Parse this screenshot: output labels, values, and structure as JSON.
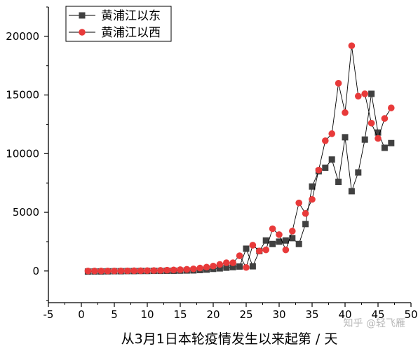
{
  "chart_data": {
    "type": "line",
    "title": "",
    "xlabel": "从3月1日本轮疫情发生以来起第 / 天",
    "ylabel": "",
    "xlim": [
      -5,
      50
    ],
    "ylim": [
      -2700,
      22500
    ],
    "x_ticks": [
      -5,
      0,
      5,
      10,
      15,
      20,
      25,
      30,
      35,
      40,
      45,
      50
    ],
    "y_ticks": [
      0,
      5000,
      10000,
      15000,
      20000
    ],
    "x_tick_labels": [
      "-5",
      "0",
      "5",
      "10",
      "15",
      "20",
      "25",
      "30",
      "35",
      "40",
      "45",
      "50"
    ],
    "y_tick_labels": [
      "0",
      "5000",
      "10000",
      "15000",
      "20000"
    ],
    "grid": false,
    "legend_position": "top-left",
    "series": [
      {
        "name": "黄浦江以东",
        "marker": "square",
        "color": "#404040",
        "x": [
          1,
          2,
          3,
          4,
          5,
          6,
          7,
          8,
          9,
          10,
          11,
          12,
          13,
          14,
          15,
          16,
          17,
          18,
          19,
          20,
          21,
          22,
          23,
          24,
          25,
          26,
          27,
          28,
          29,
          30,
          31,
          32,
          33,
          34,
          35,
          36,
          37,
          38,
          39,
          40,
          41,
          42,
          43,
          44,
          45,
          46,
          47
        ],
        "y": [
          -50,
          -40,
          -40,
          -30,
          -20,
          -20,
          -10,
          -10,
          0,
          0,
          10,
          10,
          20,
          20,
          30,
          40,
          50,
          80,
          120,
          180,
          220,
          280,
          330,
          380,
          1900,
          400,
          1700,
          2600,
          2300,
          2500,
          2600,
          2800,
          2300,
          4000,
          7200,
          8500,
          8800,
          9500,
          7600,
          11400,
          6800,
          8400,
          11200,
          15100,
          11800,
          10500,
          10900
        ]
      },
      {
        "name": "黄浦江以西",
        "marker": "circle",
        "color": "#e83a3a",
        "x": [
          1,
          2,
          3,
          4,
          5,
          6,
          7,
          8,
          9,
          10,
          11,
          12,
          13,
          14,
          15,
          16,
          17,
          18,
          19,
          20,
          21,
          22,
          23,
          24,
          25,
          26,
          27,
          28,
          29,
          30,
          31,
          32,
          33,
          34,
          35,
          36,
          37,
          38,
          39,
          40,
          41,
          42,
          43,
          44,
          45,
          46,
          47
        ],
        "y": [
          0,
          0,
          0,
          0,
          0,
          10,
          10,
          20,
          20,
          30,
          40,
          50,
          70,
          90,
          110,
          140,
          180,
          250,
          330,
          420,
          560,
          700,
          700,
          1300,
          300,
          2200,
          1700,
          1800,
          3600,
          3100,
          1800,
          3400,
          5800,
          4900,
          6100,
          8600,
          11100,
          11700,
          16000,
          13500,
          19200,
          14900,
          15100,
          12600,
          11300,
          13000,
          13900
        ]
      }
    ]
  },
  "watermark": "知乎 @轻飞雁"
}
